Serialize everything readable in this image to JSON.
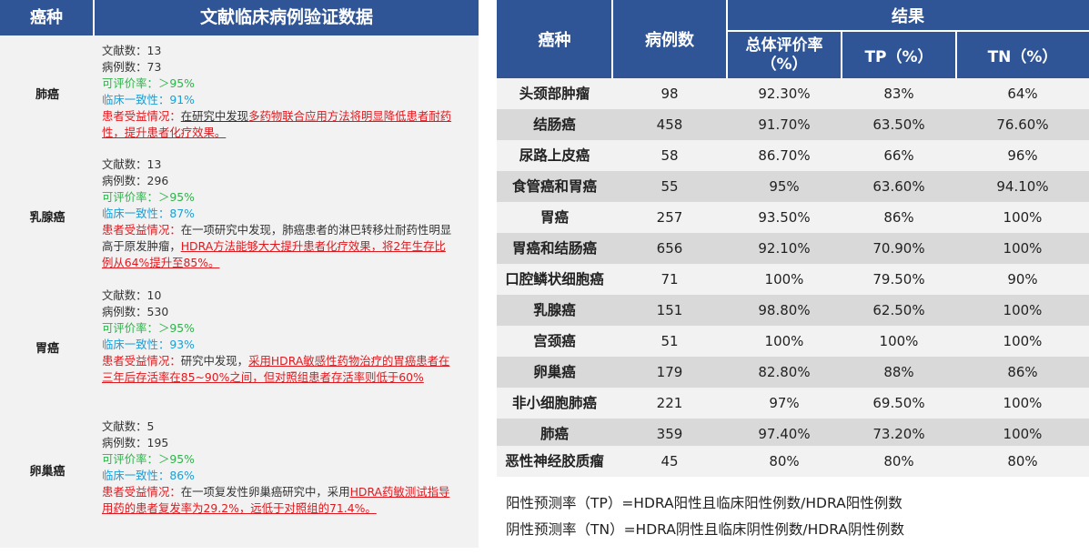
{
  "left_table": {
    "header": {
      "cancer_type": "癌种",
      "data_title": "文献临床病例验证数据"
    },
    "rows": [
      {
        "name": "肺癌",
        "papers": "文献数：13",
        "cases": "病例数：73",
        "evaluable": "可评价率：＞95%",
        "consistency": "临床一致性：91%",
        "benefit_label": "患者受益情况：",
        "benefit_plain": "在研究中发现",
        "benefit_red": "多药物联合应用方法将明显降低患者耐药性，提升患者化疗效果",
        "benefit_end": "。"
      },
      {
        "name": "乳腺癌",
        "papers": "文献数：13",
        "cases": "病例数：296",
        "evaluable": "可评价率：＞95%",
        "consistency": "临床一致性：87%",
        "benefit_label": "患者受益情况：",
        "benefit_plain": "在一项研究中发现，肺癌患者的淋巴转移灶耐药性明显高于原发肿瘤，",
        "benefit_red": "HDRA方法能够大大提升患者化疗效果，将2年生存比例从64%提升至85%。",
        "benefit_end": ""
      },
      {
        "name": "胃癌",
        "papers": "文献数：10",
        "cases": "病例数：530",
        "evaluable": "可评价率：＞95%",
        "consistency": "临床一致性：93%",
        "benefit_label": "患者受益情况：",
        "benefit_plain": "研究中发现，",
        "benefit_red": "采用HDRA敏感性药物治疗的胃癌患者在三年后存活率在85~90%之间，但对照组患者存活率则低于60%",
        "benefit_end": ""
      },
      {
        "name": "卵巢癌",
        "papers": "文献数：5",
        "cases": "病例数：195",
        "evaluable": "可评价率：＞95%",
        "consistency": "临床一致性：86%",
        "benefit_label": "患者受益情况：",
        "benefit_plain": "在一项复发性卵巢癌研究中，采用",
        "benefit_red": "HDRA药敏测试指导用药的患者复发率为29.2%，远低于对照组的71.4%。",
        "benefit_end": ""
      }
    ]
  },
  "right_table": {
    "header": {
      "cancer_type": "癌种",
      "cases": "病例数",
      "result": "结果",
      "overall_rate": "总体评价率（%）",
      "tp": "TP（%）",
      "tn": "TN（%）"
    },
    "rows": [
      {
        "name": "头颈部肿瘤",
        "cases": "98",
        "rate": "92.30%",
        "tp": "83%",
        "tn": "64%"
      },
      {
        "name": "结肠癌",
        "cases": "458",
        "rate": "91.70%",
        "tp": "63.50%",
        "tn": "76.60%"
      },
      {
        "name": "尿路上皮癌",
        "cases": "58",
        "rate": "86.70%",
        "tp": "66%",
        "tn": "96%"
      },
      {
        "name": "食管癌和胃癌",
        "cases": "55",
        "rate": "95%",
        "tp": "63.60%",
        "tn": "94.10%"
      },
      {
        "name": "胃癌",
        "cases": "257",
        "rate": "93.50%",
        "tp": "86%",
        "tn": "100%"
      },
      {
        "name": "胃癌和结肠癌",
        "cases": "656",
        "rate": "92.10%",
        "tp": "70.90%",
        "tn": "100%"
      },
      {
        "name": "口腔鳞状细胞癌",
        "cases": "71",
        "rate": "100%",
        "tp": "79.50%",
        "tn": "90%"
      },
      {
        "name": "乳腺癌",
        "cases": "151",
        "rate": "98.80%",
        "tp": "62.50%",
        "tn": "100%"
      },
      {
        "name": "宫颈癌",
        "cases": "51",
        "rate": "100%",
        "tp": "100%",
        "tn": "100%"
      },
      {
        "name": "卵巢癌",
        "cases": "179",
        "rate": "82.80%",
        "tp": "88%",
        "tn": "86%"
      },
      {
        "name": "非小细胞肺癌",
        "cases": "221",
        "rate": "97%",
        "tp": "69.50%",
        "tn": "100%"
      },
      {
        "name": "肺癌",
        "cases": "359",
        "rate": "97.40%",
        "tp": "73.20%",
        "tn": "100%"
      },
      {
        "name": "恶性神经胶质瘤",
        "cases": "45",
        "rate": "80%",
        "tp": "80%",
        "tn": "80%"
      }
    ]
  },
  "formulas": {
    "tp": "阳性预测率（TP）=HDRA阳性且临床阳性例数/HDRA阳性例数",
    "tn": "阴性预测率（TN）=HDRA阴性且临床阴性例数/HDRA阴性例数"
  },
  "colors": {
    "header_bg": "#2f5597",
    "row_light": "#f2f2f2",
    "row_dark": "#d9d9d9",
    "green_text": "#2eb34a",
    "blue_text": "#1a9fd6",
    "red_text": "#e0191f"
  }
}
